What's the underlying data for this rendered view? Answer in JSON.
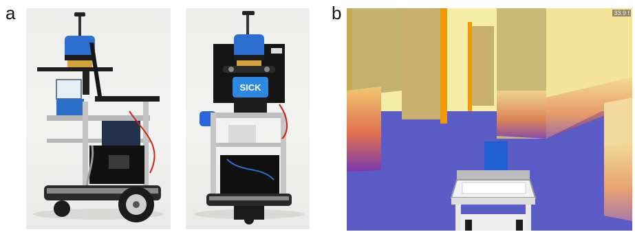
{
  "figure": {
    "panel_a_label": "a",
    "panel_b_label": "b"
  },
  "photo_front": {
    "scanner_brand": "SICK"
  },
  "simulation": {
    "speed_readout": "33.9 f",
    "colors": {
      "floor": "#5c5cc6",
      "wall_light": "#f3e49a",
      "wall_shade": "#c9b878",
      "door_frame": "#f19a00",
      "robot_box": "#1f5fd6"
    }
  }
}
